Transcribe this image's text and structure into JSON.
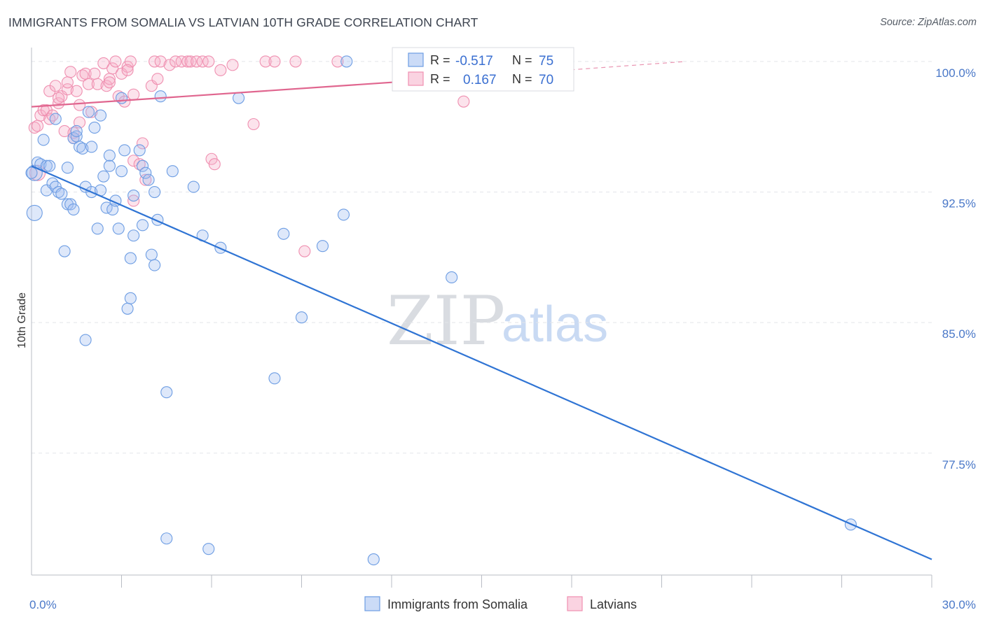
{
  "header": {
    "title": "IMMIGRANTS FROM SOMALIA VS LATVIAN 10TH GRADE CORRELATION CHART",
    "source": "Source: ZipAtlas.com"
  },
  "colors": {
    "somalia": "#6d9de3",
    "somalia_fill": "rgba(160,190,240,0.35)",
    "somalia_line": "#2f74d4",
    "latvians": "#ef8fb0",
    "latvians_fill": "rgba(245,175,200,0.35)",
    "latvians_line": "#e0668f",
    "axis_label": "#4a78c8"
  },
  "watermark": {
    "zip": "ZIP",
    "atlas": "atlas"
  },
  "legend": {
    "r_label": "R =",
    "n_label": "N =",
    "rows": [
      {
        "series": "somalia",
        "r": "-0.517",
        "n": "75"
      },
      {
        "series": "latvians",
        "r": "0.167",
        "n": "70"
      }
    ]
  },
  "chart_data": {
    "type": "scatter",
    "title": "IMMIGRANTS FROM SOMALIA VS LATVIAN 10TH GRADE CORRELATION CHART",
    "xlabel": "",
    "ylabel": "10th Grade",
    "xlim": [
      0,
      30
    ],
    "ylim": [
      70.5,
      100.8
    ],
    "x_tick_labels": [
      {
        "value": 0,
        "label": "0.0%"
      },
      {
        "value": 30,
        "label": "30.0%"
      }
    ],
    "x_minor_ticks": [
      3,
      6,
      9,
      12,
      15,
      18,
      21,
      24,
      27,
      30
    ],
    "y_ticks": [
      {
        "value": 100,
        "label": "100.0%"
      },
      {
        "value": 92.5,
        "label": "92.5%"
      },
      {
        "value": 85,
        "label": "85.0%"
      },
      {
        "value": 77.5,
        "label": "77.5%"
      }
    ],
    "grid": true,
    "series": [
      {
        "name": "Immigrants from Somalia",
        "key": "somalia",
        "trend": {
          "x0": 0,
          "y0": 94.0,
          "x1": 30,
          "y1": 71.4
        },
        "points": [
          [
            0.1,
            93.6
          ],
          [
            0.1,
            91.3
          ],
          [
            0.2,
            94.2
          ],
          [
            0.3,
            94.1
          ],
          [
            0.4,
            95.5
          ],
          [
            0.5,
            92.6
          ],
          [
            0.5,
            94.0
          ],
          [
            0.6,
            94.0
          ],
          [
            0.7,
            93.0
          ],
          [
            0.8,
            92.8
          ],
          [
            0.8,
            96.7
          ],
          [
            0.9,
            92.5
          ],
          [
            1.0,
            92.4
          ],
          [
            1.1,
            89.1
          ],
          [
            1.2,
            91.8
          ],
          [
            1.2,
            93.9
          ],
          [
            1.3,
            91.8
          ],
          [
            1.4,
            95.6
          ],
          [
            1.4,
            91.5
          ],
          [
            1.5,
            95.7
          ],
          [
            1.5,
            96.0
          ],
          [
            1.6,
            95.1
          ],
          [
            1.7,
            95.0
          ],
          [
            1.8,
            84.0
          ],
          [
            1.8,
            92.8
          ],
          [
            1.9,
            97.1
          ],
          [
            2.0,
            92.5
          ],
          [
            2.0,
            95.1
          ],
          [
            2.1,
            96.2
          ],
          [
            2.2,
            90.4
          ],
          [
            2.3,
            96.9
          ],
          [
            2.3,
            92.6
          ],
          [
            2.4,
            93.4
          ],
          [
            2.5,
            91.6
          ],
          [
            2.6,
            94.6
          ],
          [
            2.6,
            94.0
          ],
          [
            2.7,
            91.5
          ],
          [
            2.8,
            92.0
          ],
          [
            2.9,
            90.4
          ],
          [
            3.0,
            97.9
          ],
          [
            3.0,
            93.7
          ],
          [
            3.1,
            94.9
          ],
          [
            3.2,
            85.8
          ],
          [
            3.3,
            86.4
          ],
          [
            3.3,
            88.7
          ],
          [
            3.4,
            90.0
          ],
          [
            3.4,
            92.3
          ],
          [
            3.6,
            94.9
          ],
          [
            3.7,
            94.0
          ],
          [
            3.7,
            90.6
          ],
          [
            3.8,
            93.6
          ],
          [
            3.9,
            93.2
          ],
          [
            4.0,
            88.9
          ],
          [
            4.1,
            88.3
          ],
          [
            4.1,
            92.5
          ],
          [
            4.2,
            90.9
          ],
          [
            4.3,
            98.0
          ],
          [
            4.5,
            81.0
          ],
          [
            4.5,
            72.6
          ],
          [
            4.7,
            93.7
          ],
          [
            5.4,
            92.8
          ],
          [
            5.7,
            90.0
          ],
          [
            5.9,
            72.0
          ],
          [
            6.3,
            89.3
          ],
          [
            6.9,
            97.9
          ],
          [
            8.1,
            81.8
          ],
          [
            8.4,
            90.1
          ],
          [
            9.0,
            85.3
          ],
          [
            9.7,
            89.4
          ],
          [
            10.4,
            91.2
          ],
          [
            10.5,
            100.0
          ],
          [
            11.4,
            71.4
          ],
          [
            14.0,
            87.6
          ],
          [
            27.3,
            73.4
          ],
          [
            0.0,
            93.6
          ]
        ]
      },
      {
        "name": "Latvians",
        "key": "latvians",
        "trend": {
          "x0": 0,
          "y0": 97.4,
          "x1": 15.4,
          "y1": 99.2,
          "dash_x1": 21.8,
          "dash_y1": 100.0
        },
        "points": [
          [
            0.1,
            96.2
          ],
          [
            0.2,
            96.3
          ],
          [
            0.3,
            96.9
          ],
          [
            0.4,
            97.2
          ],
          [
            0.5,
            97.2
          ],
          [
            0.6,
            98.3
          ],
          [
            0.6,
            96.7
          ],
          [
            0.7,
            96.9
          ],
          [
            0.8,
            98.6
          ],
          [
            0.9,
            97.6
          ],
          [
            1.0,
            98.0
          ],
          [
            1.1,
            96.0
          ],
          [
            1.2,
            98.4
          ],
          [
            1.3,
            99.4
          ],
          [
            1.4,
            95.9
          ],
          [
            1.4,
            95.6
          ],
          [
            1.5,
            98.3
          ],
          [
            1.6,
            96.5
          ],
          [
            1.7,
            99.2
          ],
          [
            1.8,
            99.3
          ],
          [
            1.9,
            98.7
          ],
          [
            2.0,
            97.1
          ],
          [
            2.1,
            99.3
          ],
          [
            2.2,
            98.7
          ],
          [
            2.4,
            99.9
          ],
          [
            2.5,
            98.6
          ],
          [
            2.6,
            99.0
          ],
          [
            2.7,
            99.6
          ],
          [
            2.8,
            100.0
          ],
          [
            2.9,
            98.0
          ],
          [
            3.0,
            99.3
          ],
          [
            3.1,
            97.7
          ],
          [
            3.2,
            99.7
          ],
          [
            3.3,
            100.0
          ],
          [
            3.4,
            94.3
          ],
          [
            3.4,
            92.0
          ],
          [
            3.6,
            94.1
          ],
          [
            3.7,
            95.3
          ],
          [
            3.8,
            93.2
          ],
          [
            4.0,
            98.6
          ],
          [
            4.1,
            100.0
          ],
          [
            4.3,
            100.0
          ],
          [
            4.6,
            99.8
          ],
          [
            4.8,
            100.0
          ],
          [
            5.0,
            100.0
          ],
          [
            5.2,
            100.0
          ],
          [
            5.3,
            100.0
          ],
          [
            5.5,
            100.0
          ],
          [
            5.7,
            100.0
          ],
          [
            5.9,
            100.0
          ],
          [
            6.0,
            94.4
          ],
          [
            6.1,
            94.1
          ],
          [
            6.3,
            99.5
          ],
          [
            6.7,
            99.8
          ],
          [
            7.4,
            96.4
          ],
          [
            7.8,
            100.0
          ],
          [
            8.1,
            100.0
          ],
          [
            8.8,
            100.0
          ],
          [
            9.1,
            89.1
          ],
          [
            10.2,
            100.0
          ],
          [
            13.0,
            100.0
          ],
          [
            14.4,
            97.7
          ],
          [
            1.2,
            98.8
          ],
          [
            3.4,
            98.1
          ],
          [
            2.6,
            98.8
          ],
          [
            0.2,
            93.6
          ],
          [
            1.6,
            97.5
          ],
          [
            0.9,
            97.9
          ],
          [
            3.2,
            99.5
          ],
          [
            4.2,
            99.0
          ]
        ]
      }
    ]
  },
  "bottom_legend": {
    "items": [
      {
        "series": "somalia",
        "label": "Immigrants from Somalia"
      },
      {
        "series": "latvians",
        "label": "Latvians"
      }
    ]
  }
}
